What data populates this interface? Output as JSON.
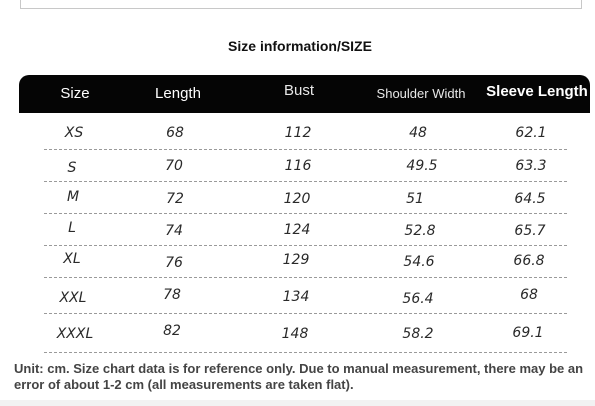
{
  "section_title": "Size information/SIZE",
  "size_table": {
    "headers": [
      "Size",
      "Length",
      "Bust",
      "Shoulder Width",
      "Sleeve Length"
    ],
    "rows": [
      [
        "XS",
        "68",
        "112",
        "48",
        "62.1"
      ],
      [
        "S",
        "70",
        "116",
        "49.5",
        "63.3"
      ],
      [
        "M",
        "72",
        "120",
        "51",
        "64.5"
      ],
      [
        "L",
        "74",
        "124",
        "52.8",
        "65.7"
      ],
      [
        "XL",
        "76",
        "129",
        "54.6",
        "66.8"
      ],
      [
        "XXL",
        "78",
        "134",
        "56.4",
        "68"
      ],
      [
        "XXXL",
        "82",
        "148",
        "58.2",
        "69.1"
      ]
    ]
  },
  "note": "Unit: cm. Size chart data is for reference only. Due to manual measurement, there may be an error of about 1-2 cm (all measurements are taken flat)."
}
